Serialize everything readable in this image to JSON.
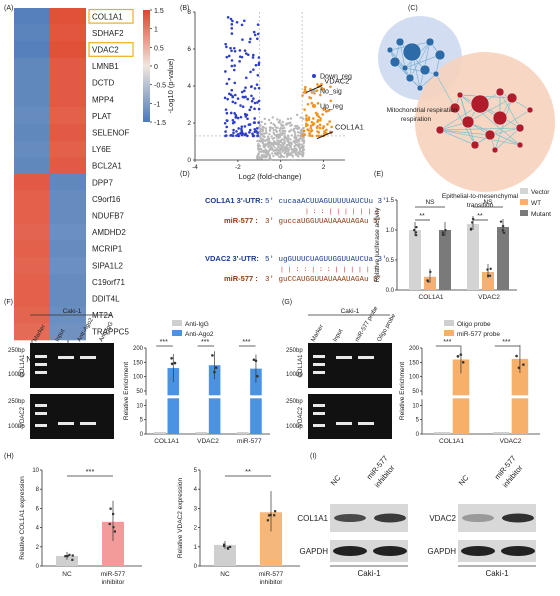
{
  "panels": {
    "A": "(A)",
    "B": "(B)",
    "C": "(C)",
    "D": "(D)",
    "E": "(E)",
    "F": "(F)",
    "G": "(G)",
    "H": "(H)",
    "I": "(I)"
  },
  "heatmap": {
    "genes": [
      "COL1A1",
      "SDHAF2",
      "VDAC2",
      "LMNB1",
      "DCTD",
      "MPP4",
      "PLAT",
      "SELENOF",
      "LY6E",
      "BCL2A1",
      "DPP7",
      "C9orf16",
      "NDUFB7",
      "AMDHD2",
      "MCRIP1",
      "SIPA1L2",
      "C19orf71",
      "DDIT4L",
      "MT2A",
      "TRAPPC5"
    ],
    "highlighted": [
      "COL1A1",
      "VDAC2"
    ],
    "columns": [
      "NC",
      "miR-577\ninhibitor"
    ],
    "col_labels": {
      "nc": "NC",
      "inh1": "miR-577",
      "inh2": "inhibitor"
    },
    "colorbar_ticks": [
      "1.5",
      "1",
      "0.5",
      "0",
      "-0.5",
      "-1",
      "-1.5"
    ],
    "colors": {
      "high": "#e0452d",
      "low": "#4a79b8",
      "mid": "#f0e6de"
    }
  },
  "chart_data": [
    {
      "type": "scatter",
      "id": "B-volcano",
      "xlabel": "Log2 (fold-change)",
      "ylabel": "-Log10 (p-value)",
      "xlim": [
        -4,
        3
      ],
      "ylim": [
        0,
        8
      ],
      "xticks": [
        "-4",
        "-2",
        "0",
        "2"
      ],
      "yticks": [
        "0",
        "2",
        "4",
        "6",
        "8"
      ],
      "legend": [
        "Down_reg",
        "No_sig",
        "Up_reg"
      ],
      "series_colors": {
        "Down_reg": "#2d3fc9",
        "No_sig": "#b8b8b8",
        "Up_reg": "#f0921e"
      },
      "annotations": [
        {
          "text": "VDAC2",
          "x": 1.1,
          "y": 3.6
        },
        {
          "text": "COL1A1",
          "x": 1.6,
          "y": 1.1
        }
      ]
    },
    {
      "type": "bar",
      "id": "E-luciferase",
      "categories": [
        "COL1A1",
        "VDAC2"
      ],
      "series": [
        {
          "name": "Vector",
          "values": [
            1.0,
            1.1
          ]
        },
        {
          "name": "WT",
          "values": [
            0.22,
            0.3
          ]
        },
        {
          "name": "Mutant",
          "values": [
            1.0,
            1.05
          ]
        }
      ],
      "ylabel": "Relative luciferase activity",
      "ylim": [
        0,
        1.5
      ],
      "yticks": [
        "0.0",
        "0.5",
        "1.0",
        "1.5"
      ],
      "significance": [
        "**",
        "NS",
        "**",
        "NS"
      ]
    },
    {
      "type": "bar",
      "id": "F-RIP",
      "categories": [
        "COL1A1",
        "VDAC2",
        "miR-577"
      ],
      "series": [
        {
          "name": "Anti-IgG",
          "values": [
            1,
            1,
            1
          ]
        },
        {
          "name": "Anti-Ago2",
          "values": [
            130,
            140,
            128
          ]
        }
      ],
      "ylabel": "Relative Enrichment",
      "yticks": [
        "0",
        "5",
        "10",
        "50",
        "100",
        "150",
        "200"
      ],
      "significance": [
        "***",
        "***",
        "***"
      ]
    },
    {
      "type": "bar",
      "id": "G-pulldown",
      "categories": [
        "COL1A1",
        "VDAC2"
      ],
      "series": [
        {
          "name": "Oligo probe",
          "values": [
            1,
            1
          ]
        },
        {
          "name": "miR-577 probe",
          "values": [
            160,
            162
          ]
        }
      ],
      "ylabel": "Relative Enrichment",
      "yticks": [
        "0",
        "5",
        "10",
        "50",
        "100",
        "150",
        "200"
      ],
      "significance": [
        "***",
        "***"
      ]
    },
    {
      "type": "bar",
      "id": "H-COL1A1",
      "categories": [
        "NC",
        "miR-577 inhibitor"
      ],
      "values": [
        1.05,
        4.6
      ],
      "ylabel": "Relative COL1A1 expression",
      "ylim": [
        0,
        10
      ],
      "yticks": [
        "0",
        "2",
        "4",
        "6",
        "8",
        "10"
      ],
      "significance": "***"
    },
    {
      "type": "bar",
      "id": "H-VDAC2",
      "categories": [
        "NC",
        "miR-577 inhibitor"
      ],
      "values": [
        1.1,
        2.8
      ],
      "ylabel": "Relative VDAC2 expression",
      "ylim": [
        0,
        5
      ],
      "yticks": [
        "0",
        "1",
        "2",
        "3",
        "4",
        "5"
      ],
      "significance": "**"
    }
  ],
  "network": {
    "cluster1": "Mitochondrial respiration",
    "cluster2a": "Epithelial-to-mesenchymal",
    "cluster2b": "transition"
  },
  "seqs": {
    "col1a1_label": "COL1A1 3'-UTR:",
    "col1a1_seq": "5' cucaaACUUAGUUUUUAUCUu 3'",
    "col1a1_pairs": "| : : | | | | | | |",
    "mir_label": "miR-577 :",
    "mir_seq": "3' guccaUGGUUAUAAAUAGAu 5'",
    "vdac2_label": "VDAC2 3'-UTR:",
    "vdac2_seq": "5' ugGUUUCUAGUUGGUUAUCUa 3'",
    "vdac2_pairs": "| | : : | : : | | | | | |",
    "mir2_seq": "3' guCCAUGGUUAUAAAUAGAu 5'"
  },
  "gels": {
    "F_title": "Caki-1",
    "G_title": "Caki-1",
    "F_lanes": [
      "Marker",
      "Input",
      "Anti-Ago2",
      "Anti-IgG"
    ],
    "G_lanes": [
      "Marker",
      "Input",
      "miR-577 probe",
      "Oligo probe"
    ],
    "markers": [
      "250bp",
      "100bp"
    ],
    "rows": [
      "COL1A1",
      "VDAC2"
    ]
  },
  "blots": {
    "lanes": [
      "NC",
      "miR-577",
      "inhibitor"
    ],
    "left_rows": [
      "COL1A1",
      "GAPDH"
    ],
    "right_rows": [
      "VDAC2",
      "GAPDH"
    ],
    "cell": "Caki-1"
  }
}
